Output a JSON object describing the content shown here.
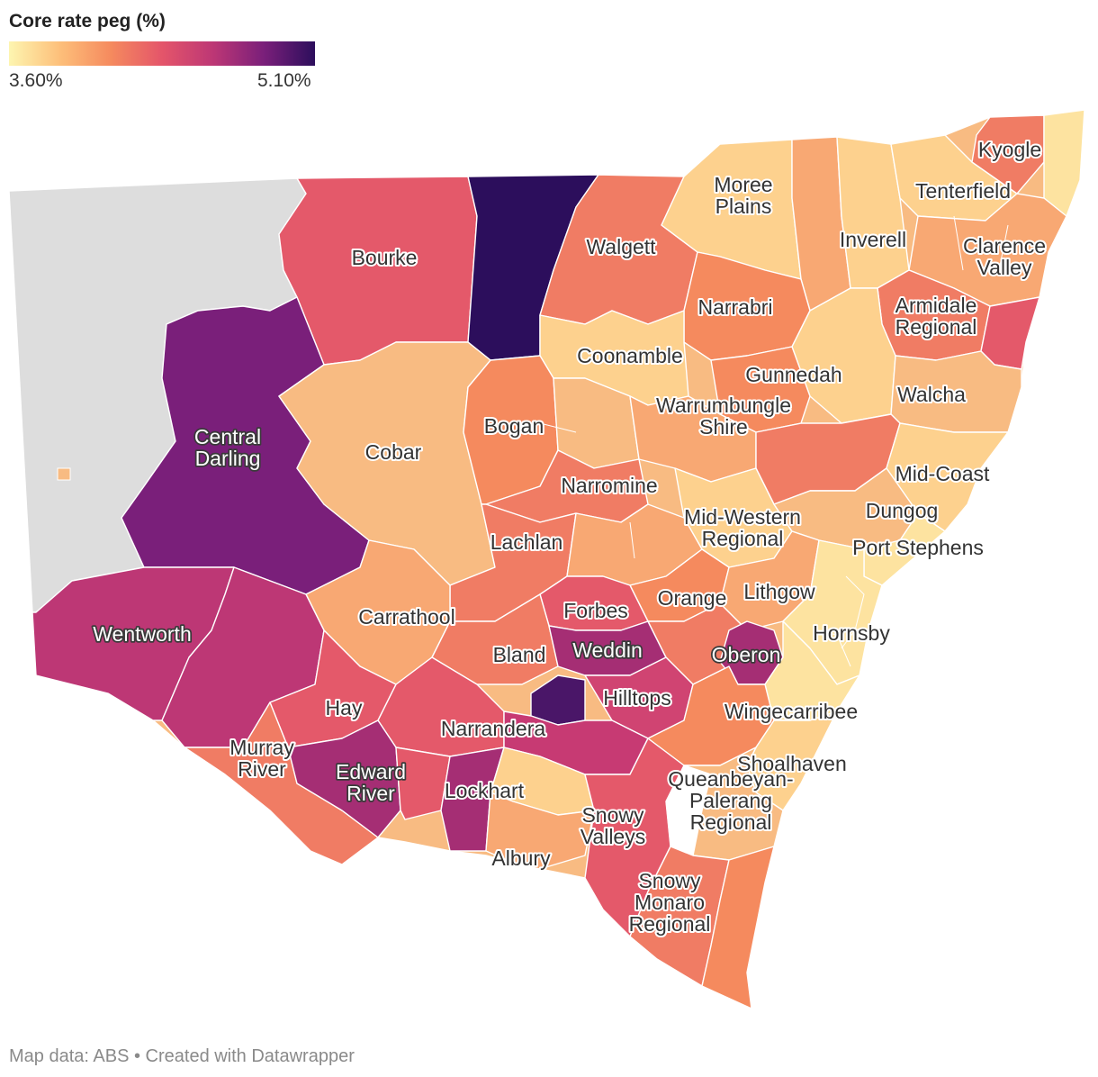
{
  "legend": {
    "title": "Core rate peg (%)",
    "min_label": "3.60%",
    "max_label": "5.10%",
    "min_value": 3.6,
    "max_value": 5.1,
    "color_stops": [
      "#fdf5b0",
      "#fdbf7a",
      "#f58a5e",
      "#e4556a",
      "#bd3775",
      "#7a1f7a",
      "#2c0e5c"
    ]
  },
  "no_data_color": "#dddddd",
  "map_labels": [
    {
      "id": "bourke",
      "lines": [
        "Bourke"
      ]
    },
    {
      "id": "walgett",
      "lines": [
        "Walgett"
      ]
    },
    {
      "id": "moree-plains",
      "lines": [
        "Moree",
        "Plains"
      ]
    },
    {
      "id": "inverell",
      "lines": [
        "Inverell"
      ]
    },
    {
      "id": "tenterfield",
      "lines": [
        "Tenterfield"
      ]
    },
    {
      "id": "kyogle",
      "lines": [
        "Kyogle"
      ]
    },
    {
      "id": "clarence-valley",
      "lines": [
        "Clarence",
        "Valley"
      ]
    },
    {
      "id": "armidale-regional",
      "lines": [
        "Armidale",
        "Regional"
      ]
    },
    {
      "id": "narrabri",
      "lines": [
        "Narrabri"
      ]
    },
    {
      "id": "coonamble",
      "lines": [
        "Coonamble"
      ]
    },
    {
      "id": "gunnedah",
      "lines": [
        "Gunnedah"
      ]
    },
    {
      "id": "walcha",
      "lines": [
        "Walcha"
      ]
    },
    {
      "id": "central-darling",
      "lines": [
        "Central",
        "Darling"
      ],
      "dark": true
    },
    {
      "id": "cobar",
      "lines": [
        "Cobar"
      ]
    },
    {
      "id": "bogan",
      "lines": [
        "Bogan"
      ]
    },
    {
      "id": "warrumbungle-shire",
      "lines": [
        "Warrumbungle",
        "Shire"
      ]
    },
    {
      "id": "mid-coast",
      "lines": [
        "Mid-Coast"
      ]
    },
    {
      "id": "narromine",
      "lines": [
        "Narromine"
      ]
    },
    {
      "id": "dungog",
      "lines": [
        "Dungog"
      ]
    },
    {
      "id": "mid-western-regional",
      "lines": [
        "Mid-Western",
        "Regional"
      ]
    },
    {
      "id": "port-stephens",
      "lines": [
        "Port Stephens"
      ]
    },
    {
      "id": "lachlan",
      "lines": [
        "Lachlan"
      ]
    },
    {
      "id": "orange",
      "lines": [
        "Orange"
      ]
    },
    {
      "id": "lithgow",
      "lines": [
        "Lithgow"
      ]
    },
    {
      "id": "forbes",
      "lines": [
        "Forbes"
      ]
    },
    {
      "id": "carrathool",
      "lines": [
        "Carrathool"
      ]
    },
    {
      "id": "wentworth",
      "lines": [
        "Wentworth"
      ],
      "dark": true
    },
    {
      "id": "hornsby",
      "lines": [
        "Hornsby"
      ]
    },
    {
      "id": "weddin",
      "lines": [
        "Weddin"
      ],
      "dark": true
    },
    {
      "id": "bland",
      "lines": [
        "Bland"
      ]
    },
    {
      "id": "oberon",
      "lines": [
        "Oberon"
      ],
      "dark": true
    },
    {
      "id": "hilltops",
      "lines": [
        "Hilltops"
      ]
    },
    {
      "id": "hay",
      "lines": [
        "Hay"
      ]
    },
    {
      "id": "wingecarribee",
      "lines": [
        "Wingecarribee"
      ]
    },
    {
      "id": "narrandera",
      "lines": [
        "Narrandera"
      ]
    },
    {
      "id": "murray-river",
      "lines": [
        "Murray",
        "River"
      ]
    },
    {
      "id": "shoalhaven",
      "lines": [
        "Shoalhaven"
      ]
    },
    {
      "id": "edward-river",
      "lines": [
        "Edward",
        "River"
      ],
      "dark": true
    },
    {
      "id": "lockhart",
      "lines": [
        "Lockhart"
      ]
    },
    {
      "id": "queanbeyan-palerang-regional",
      "lines": [
        "Queanbeyan-",
        "Palerang",
        "Regional"
      ]
    },
    {
      "id": "snowy-valleys",
      "lines": [
        "Snowy",
        "Valleys"
      ]
    },
    {
      "id": "albury",
      "lines": [
        "Albury"
      ]
    },
    {
      "id": "snowy-monaro-regional",
      "lines": [
        "Snowy",
        "Monaro",
        "Regional"
      ]
    }
  ],
  "footer": "Map data: ABS • Created with Datawrapper"
}
